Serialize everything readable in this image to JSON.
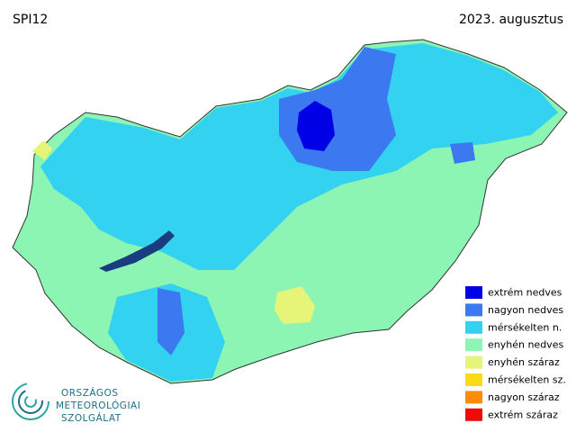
{
  "header": {
    "title": "SPI12",
    "date": "2023. augusztus"
  },
  "legend": {
    "items": [
      {
        "label": "extrém nedves",
        "color": "#0000e6"
      },
      {
        "label": "nagyon nedves",
        "color": "#3c78f0"
      },
      {
        "label": "mérsékelten n.",
        "color": "#32d2f0"
      },
      {
        "label": "enyhén nedves",
        "color": "#8cf5b4"
      },
      {
        "label": "enyhén száraz",
        "color": "#e6f578"
      },
      {
        "label": "mérsékelten sz.",
        "color": "#fadc14"
      },
      {
        "label": "nagyon száraz",
        "color": "#fa8c0a"
      },
      {
        "label": "extrém száraz",
        "color": "#f00a0a"
      }
    ]
  },
  "logo": {
    "lines": [
      "ORSZÁGOS",
      "METEOROLÓGIAI",
      "SZOLGÁLAT"
    ]
  }
}
